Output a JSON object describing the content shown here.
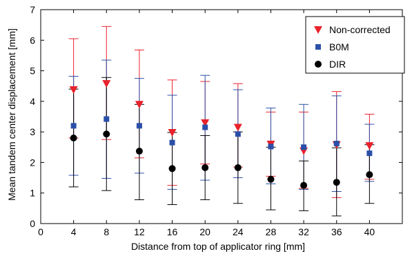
{
  "chart_data": {
    "type": "scatter",
    "title": "",
    "xlabel": "Distance from top of applicator ring [mm]",
    "ylabel": "Mean tandem center displacement [mm]",
    "xlim": [
      0,
      44
    ],
    "ylim": [
      0,
      7
    ],
    "xticks": [
      0,
      4,
      8,
      12,
      16,
      20,
      24,
      28,
      32,
      36,
      40
    ],
    "yticks": [
      0,
      1,
      2,
      3,
      4,
      5,
      6,
      7
    ],
    "x": [
      4,
      8,
      12,
      16,
      20,
      24,
      28,
      32,
      36,
      40
    ],
    "grid": false,
    "legend_position": "top-right",
    "series": [
      {
        "name": "Non-corrected",
        "marker": "triangle-down",
        "color": "#e8212b",
        "values": [
          4.38,
          4.58,
          3.9,
          2.98,
          3.3,
          3.15,
          2.6,
          2.38,
          2.58,
          2.55
        ],
        "err_low": [
          2.8,
          2.75,
          2.15,
          1.25,
          1.95,
          1.85,
          1.55,
          1.15,
          0.85,
          1.45
        ],
        "err_high": [
          6.05,
          6.45,
          5.68,
          4.7,
          4.65,
          4.58,
          3.65,
          3.65,
          4.32,
          3.58
        ]
      },
      {
        "name": "B0M",
        "marker": "square",
        "color": "#2b4fa8",
        "values": [
          3.2,
          3.42,
          3.2,
          2.65,
          3.15,
          2.93,
          2.52,
          2.5,
          2.62,
          2.3
        ],
        "err_low": [
          1.58,
          1.48,
          1.65,
          1.12,
          1.42,
          1.5,
          1.3,
          1.12,
          1.05,
          1.38
        ],
        "err_high": [
          4.82,
          5.35,
          4.75,
          4.2,
          4.85,
          4.38,
          3.78,
          3.9,
          4.18,
          3.25
        ]
      },
      {
        "name": "DIR",
        "marker": "circle",
        "color": "#000000",
        "values": [
          2.8,
          2.93,
          2.37,
          1.8,
          1.83,
          1.83,
          1.45,
          1.25,
          1.35,
          1.6
        ],
        "err_low": [
          1.2,
          1.08,
          0.78,
          0.62,
          0.78,
          0.66,
          0.45,
          0.42,
          0.25,
          0.66
        ],
        "err_high": [
          4.4,
          4.78,
          3.9,
          2.98,
          2.88,
          3.0,
          2.5,
          2.05,
          2.48,
          2.58
        ]
      }
    ]
  }
}
